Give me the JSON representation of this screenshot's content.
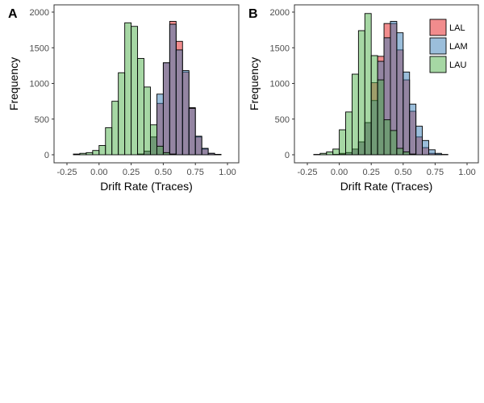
{
  "chart_data": [
    {
      "type": "bar",
      "panel_label": "A",
      "xlabel": "Drift Rate (Traces)",
      "ylabel": "Frequency",
      "xlim": [
        -0.25,
        1.0
      ],
      "ylim": [
        0,
        2000
      ],
      "xticks": [
        "-0.25",
        "0.00",
        "0.25",
        "0.50",
        "0.75",
        "1.00"
      ],
      "xtick_values": [
        -0.25,
        0,
        0.25,
        0.5,
        0.75,
        1.0
      ],
      "yticks": [
        "0",
        "500",
        "1000",
        "1500",
        "2000"
      ],
      "ytick_values": [
        0,
        500,
        1000,
        1500,
        2000
      ],
      "x": [
        -0.175,
        -0.125,
        -0.075,
        -0.025,
        0.025,
        0.075,
        0.125,
        0.175,
        0.225,
        0.275,
        0.325,
        0.375,
        0.425,
        0.475,
        0.525,
        0.575,
        0.625,
        0.675,
        0.725,
        0.775,
        0.825,
        0.875,
        0.925,
        0.975
      ],
      "bin_width": 0.05,
      "legend": false,
      "series": [
        {
          "name": "LAL",
          "color": "#e41a1c",
          "values": [
            0,
            0,
            0,
            0,
            0,
            0,
            0,
            0,
            0,
            0,
            10,
            50,
            250,
            720,
            1290,
            1870,
            1590,
            1160,
            660,
            250,
            80,
            20,
            5,
            0
          ]
        },
        {
          "name": "LAM",
          "color": "#377eb8",
          "values": [
            0,
            0,
            0,
            0,
            0,
            0,
            0,
            0,
            0,
            0,
            10,
            50,
            250,
            850,
            1290,
            1830,
            1470,
            1180,
            650,
            260,
            90,
            20,
            5,
            0
          ]
        },
        {
          "name": "LAU",
          "color": "#4daf4a",
          "values": [
            10,
            20,
            30,
            60,
            130,
            380,
            750,
            1150,
            1850,
            1800,
            1350,
            950,
            420,
            120,
            30,
            10,
            0,
            0,
            0,
            0,
            0,
            0,
            0,
            0
          ]
        }
      ]
    },
    {
      "type": "bar",
      "panel_label": "B",
      "xlabel": "Drift Rate (Traces)",
      "ylabel": "Frequency",
      "xlim": [
        -0.25,
        1.0
      ],
      "ylim": [
        0,
        2000
      ],
      "xticks": [
        "-0.25",
        "0.00",
        "0.25",
        "0.50",
        "0.75",
        "1.00"
      ],
      "xtick_values": [
        -0.25,
        0,
        0.25,
        0.5,
        0.75,
        1.0
      ],
      "yticks": [
        "0",
        "500",
        "1000",
        "1500",
        "2000"
      ],
      "ytick_values": [
        0,
        500,
        1000,
        1500,
        2000
      ],
      "x": [
        -0.175,
        -0.125,
        -0.075,
        -0.025,
        0.025,
        0.075,
        0.125,
        0.175,
        0.225,
        0.275,
        0.325,
        0.375,
        0.425,
        0.475,
        0.525,
        0.575,
        0.625,
        0.675,
        0.725,
        0.775,
        0.825,
        0.875,
        0.925,
        0.975
      ],
      "bin_width": 0.05,
      "legend": true,
      "legend_position": "top-right",
      "series": [
        {
          "name": "LAL",
          "color": "#e41a1c",
          "values": [
            0,
            0,
            0,
            5,
            20,
            30,
            80,
            180,
            450,
            1010,
            1380,
            1840,
            1840,
            1470,
            1050,
            610,
            250,
            100,
            20,
            5,
            0,
            0,
            0,
            0
          ]
        },
        {
          "name": "LAM",
          "color": "#377eb8",
          "values": [
            0,
            0,
            0,
            5,
            10,
            30,
            80,
            180,
            450,
            760,
            1310,
            1640,
            1870,
            1710,
            1160,
            710,
            400,
            200,
            70,
            20,
            5,
            0,
            0,
            0
          ]
        },
        {
          "name": "LAU",
          "color": "#4daf4a",
          "values": [
            5,
            20,
            40,
            80,
            350,
            600,
            1130,
            1740,
            1980,
            1390,
            1050,
            490,
            340,
            90,
            40,
            10,
            0,
            0,
            0,
            0,
            0,
            0,
            0,
            0
          ]
        }
      ]
    }
  ]
}
